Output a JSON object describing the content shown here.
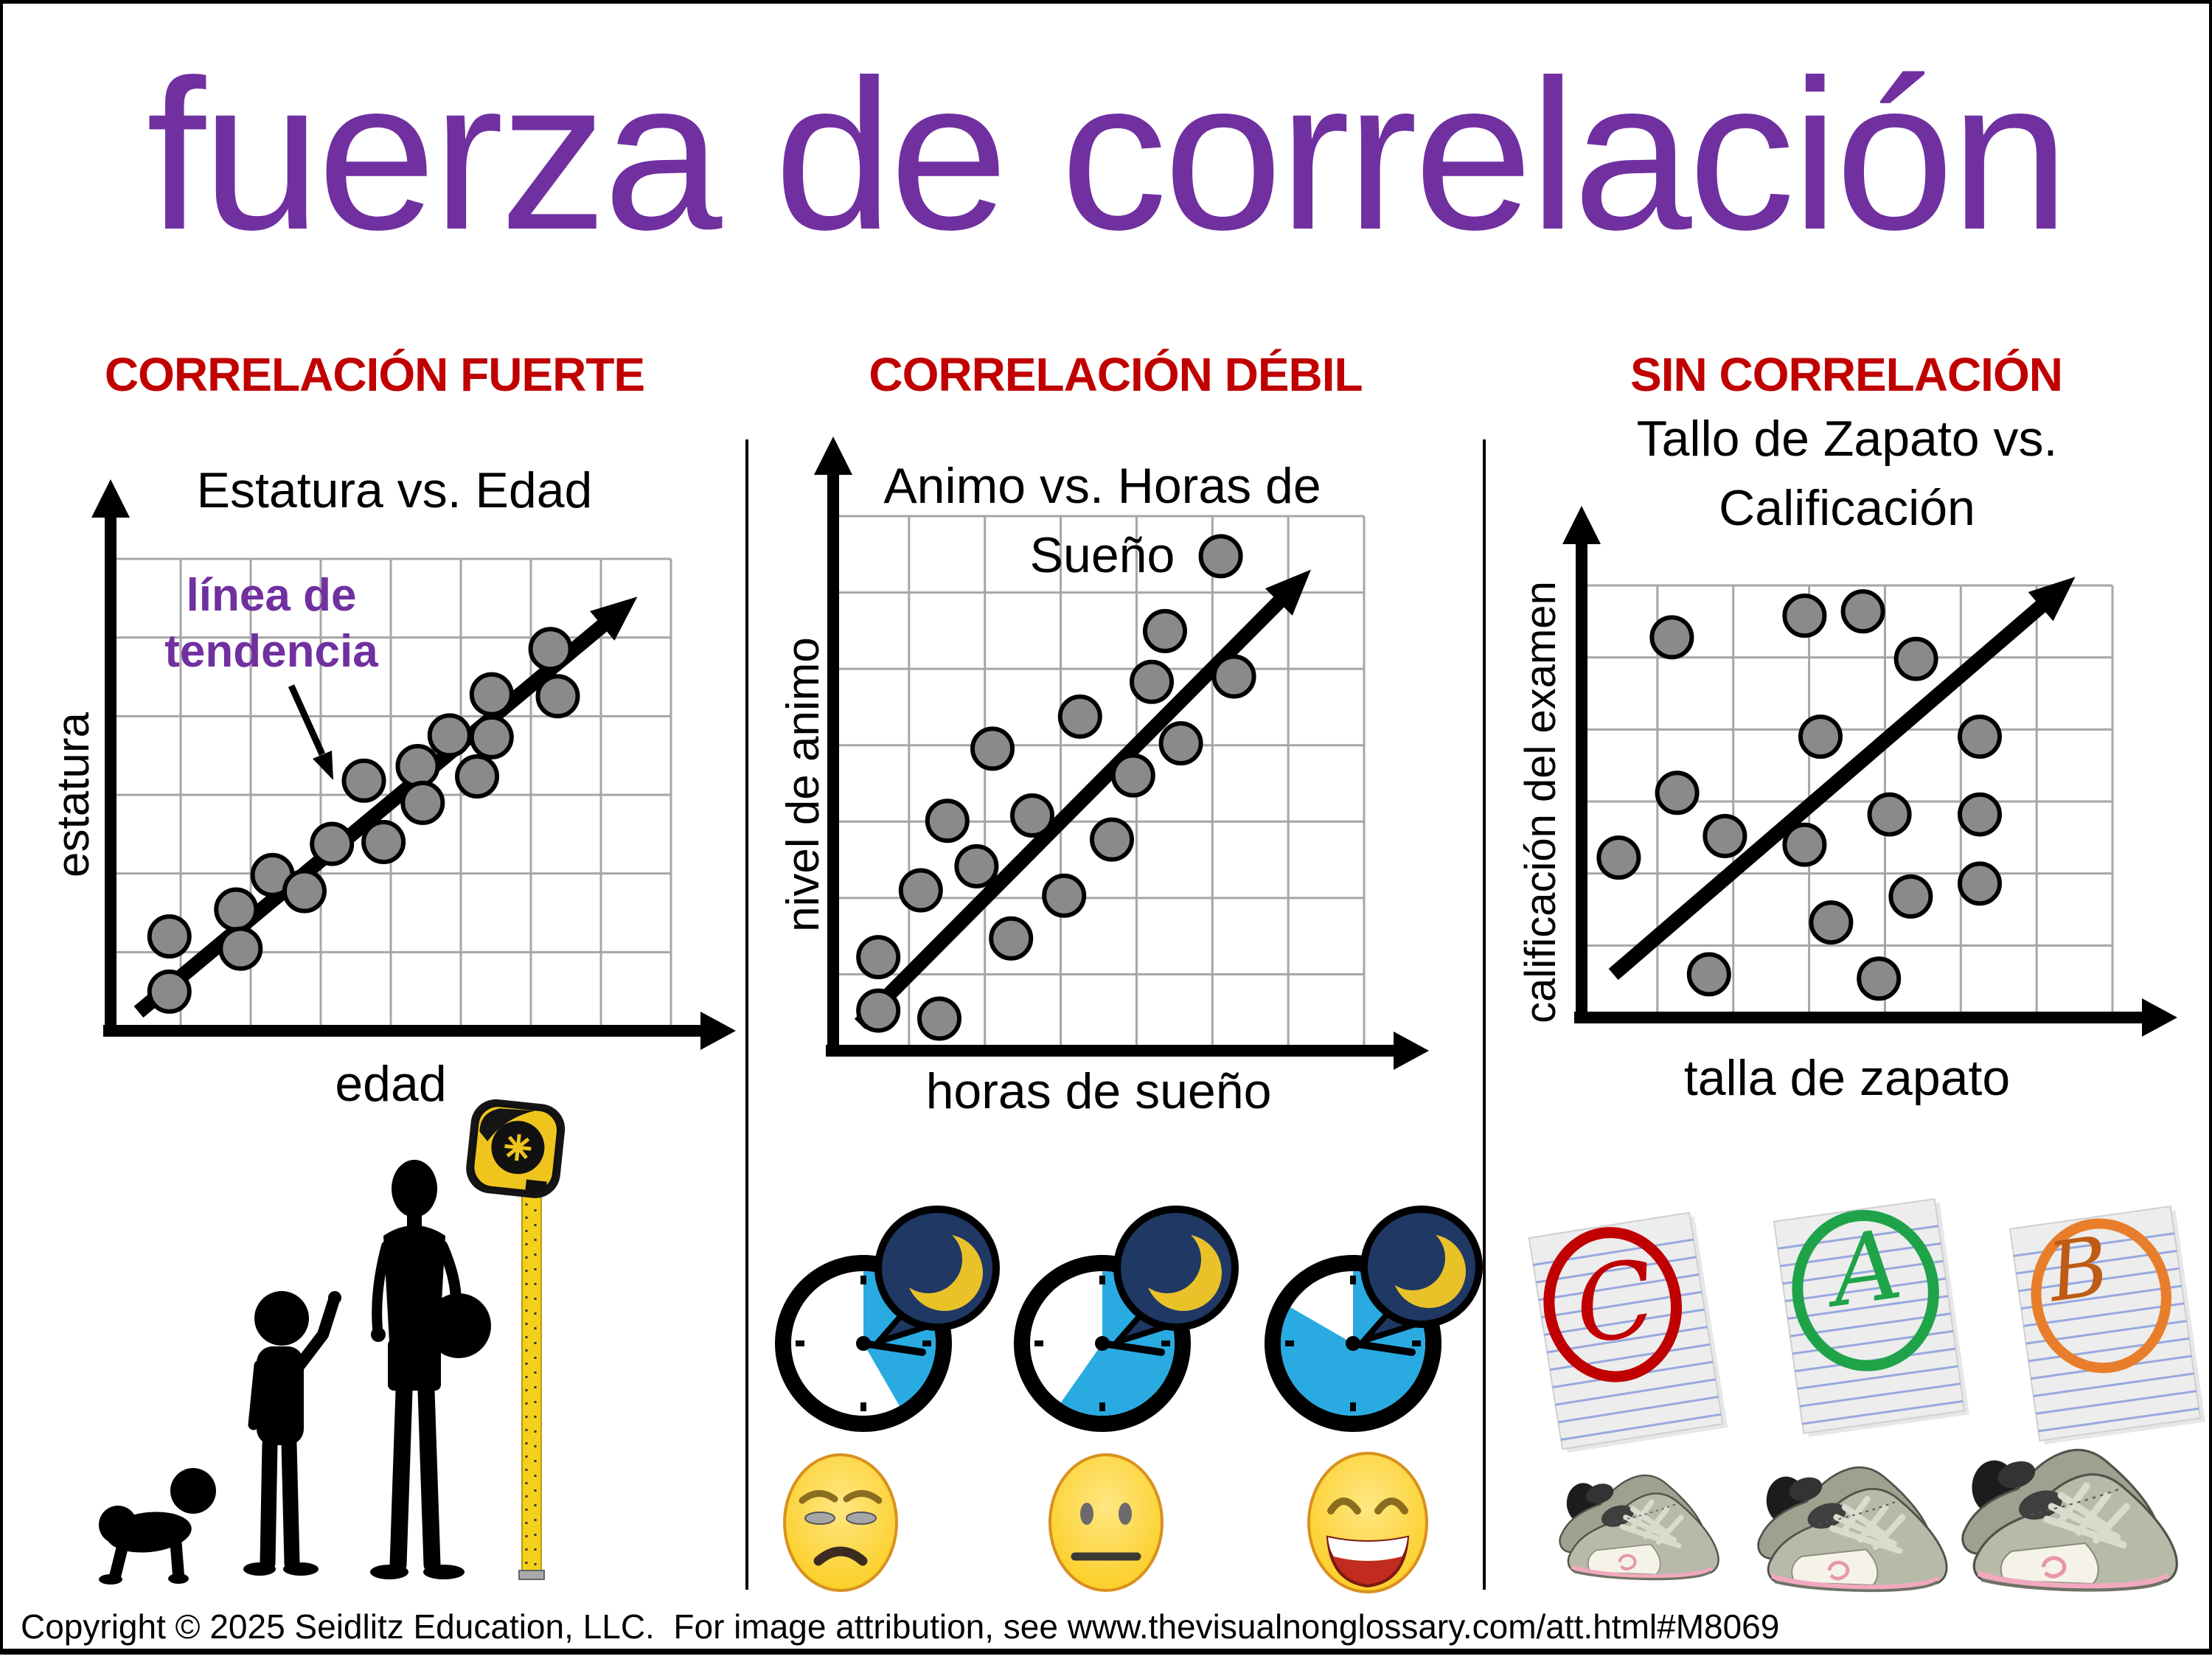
{
  "page": {
    "title": "fuerza de correlación",
    "copyright": "Copyright © 2025 Seidlitz Education, LLC.  For image attribution, see www.thevisualnonglossary.com/att.html#M8069"
  },
  "colors": {
    "title": "#7030A0",
    "header": "#C00000",
    "annotation": "#7030A0",
    "grid": "#A6A6A6",
    "dot_fill": "#8A8A8A",
    "axis": "#000000",
    "clock_blue": "#29ABE2",
    "bubble_navy": "#1F3864",
    "moon_yellow": "#E9C229",
    "emoji_yellow": "#FBCC1D"
  },
  "columns": [
    {
      "header": "CORRELACIÓN FUERTE"
    },
    {
      "header": "CORRELACIÓN DÉBIL"
    },
    {
      "header": "SIN CORRELACIÓN"
    }
  ],
  "annotation": {
    "line1": "línea de",
    "line2": "tendencia"
  },
  "chart_data": [
    {
      "type": "scatter",
      "correlation": "fuerte",
      "title": "Estatura vs. Edad",
      "title_lines": [
        "Estatura vs. Edad"
      ],
      "xlabel": "edad",
      "ylabel": "estatura",
      "units": "relative 0-1 (no numeric ticks shown)",
      "grid": [
        8,
        6
      ],
      "trendline": [
        0.05,
        0.04,
        0.94,
        0.92
      ],
      "points": [
        [
          0.105,
          0.083
        ],
        [
          0.105,
          0.2
        ],
        [
          0.224,
          0.257
        ],
        [
          0.232,
          0.174
        ],
        [
          0.289,
          0.33
        ],
        [
          0.346,
          0.296
        ],
        [
          0.395,
          0.396
        ],
        [
          0.487,
          0.4
        ],
        [
          0.452,
          0.53
        ],
        [
          0.548,
          0.561
        ],
        [
          0.557,
          0.483
        ],
        [
          0.605,
          0.626
        ],
        [
          0.654,
          0.539
        ],
        [
          0.68,
          0.622
        ],
        [
          0.68,
          0.713
        ],
        [
          0.785,
          0.809
        ],
        [
          0.798,
          0.709
        ]
      ],
      "has_trendline_label": true
    },
    {
      "type": "scatter",
      "correlation": "débil",
      "title": "Animo vs. Horas de Sueño",
      "title_lines": [
        "Animo vs. Horas de",
        "Sueño"
      ],
      "xlabel": "horas de sueño",
      "ylabel": "nivel de animo",
      "units": "relative 0-1 (no numeric ticks shown)",
      "grid": [
        7,
        7
      ],
      "trendline": [
        0.05,
        0.05,
        0.9,
        0.9
      ],
      "points": [
        [
          0.085,
          0.075
        ],
        [
          0.085,
          0.175
        ],
        [
          0.2,
          0.06
        ],
        [
          0.165,
          0.3
        ],
        [
          0.215,
          0.43
        ],
        [
          0.27,
          0.345
        ],
        [
          0.3,
          0.565
        ],
        [
          0.335,
          0.21
        ],
        [
          0.375,
          0.44
        ],
        [
          0.435,
          0.29
        ],
        [
          0.465,
          0.625
        ],
        [
          0.525,
          0.395
        ],
        [
          0.565,
          0.515
        ],
        [
          0.6,
          0.69
        ],
        [
          0.655,
          0.575
        ],
        [
          0.625,
          0.785
        ],
        [
          0.755,
          0.7
        ],
        [
          0.73,
          0.925
        ]
      ],
      "has_trendline_label": false
    },
    {
      "type": "scatter",
      "correlation": "sin",
      "title": "Tallo de Zapato vs. Calificación",
      "title_lines": [
        "Tallo de Zapato vs.",
        "Calificación"
      ],
      "xlabel": "talla de zapato",
      "ylabel": "calificación del examen",
      "units": "relative 0-1 (no numeric ticks shown)",
      "grid": [
        7,
        6
      ],
      "trendline": [
        0.06,
        0.1,
        0.93,
        1.02
      ],
      "points": [
        [
          0.17,
          0.88
        ],
        [
          0.42,
          0.93
        ],
        [
          0.53,
          0.94
        ],
        [
          0.63,
          0.83
        ],
        [
          0.45,
          0.65
        ],
        [
          0.75,
          0.65
        ],
        [
          0.18,
          0.52
        ],
        [
          0.58,
          0.47
        ],
        [
          0.75,
          0.47
        ],
        [
          0.27,
          0.42
        ],
        [
          0.42,
          0.4
        ],
        [
          0.07,
          0.37
        ],
        [
          0.62,
          0.28
        ],
        [
          0.75,
          0.31
        ],
        [
          0.47,
          0.22
        ],
        [
          0.24,
          0.1
        ],
        [
          0.56,
          0.09
        ]
      ],
      "has_trendline_label": false
    }
  ],
  "illustrations": {
    "column1": {
      "icons": [
        "crawling-baby-silhouette",
        "toddler-silhouette",
        "teen-with-ball-silhouette",
        "measuring-tape-icon"
      ]
    },
    "column2": {
      "icons": [
        "sleep-clock-icon",
        "moon-speech-bubble-icon"
      ],
      "emojis": [
        "tired-face",
        "neutral-face",
        "happy-face"
      ],
      "sleep_wedge_degrees": [
        150,
        215,
        300
      ]
    },
    "column3": {
      "grades": [
        {
          "letter": "C",
          "color": "#C00000"
        },
        {
          "letter": "A",
          "color": "#1FA349"
        },
        {
          "letter": "B",
          "color": "#BF5B15"
        }
      ],
      "icons": [
        "graded-paper-icon",
        "sneaker-pair-icon"
      ]
    }
  }
}
